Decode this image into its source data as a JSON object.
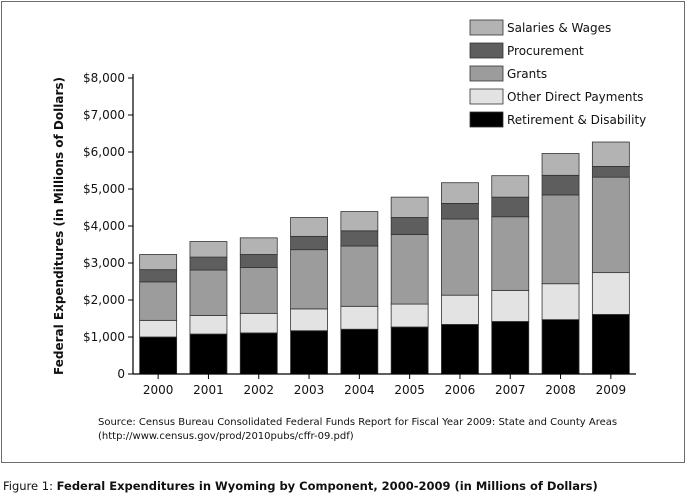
{
  "chart_data": {
    "type": "bar",
    "stacked": true,
    "categories": [
      "2000",
      "2001",
      "2002",
      "2003",
      "2004",
      "2005",
      "2006",
      "2007",
      "2008",
      "2009"
    ],
    "series": [
      {
        "name": "Retirement & Disability",
        "color": "#000000",
        "values": [
          1000,
          1080,
          1110,
          1170,
          1210,
          1270,
          1340,
          1420,
          1470,
          1610
        ]
      },
      {
        "name": "Other Direct Payments",
        "color": "#e3e3e3",
        "values": [
          450,
          500,
          530,
          590,
          620,
          620,
          790,
          840,
          970,
          1130
        ]
      },
      {
        "name": "Grants",
        "color": "#9c9c9c",
        "values": [
          1040,
          1230,
          1240,
          1600,
          1630,
          1880,
          2060,
          1990,
          2400,
          2580
        ]
      },
      {
        "name": "Procurement",
        "color": "#5e5e5e",
        "values": [
          330,
          350,
          350,
          360,
          410,
          460,
          420,
          530,
          530,
          290
        ]
      },
      {
        "name": "Salaries & Wages",
        "color": "#b3b3b3",
        "values": [
          410,
          420,
          450,
          510,
          520,
          550,
          560,
          580,
          590,
          660
        ]
      }
    ],
    "ylabel": "Federal Expenditures (in Millions of Dollars)",
    "ylim": [
      0,
      8000
    ],
    "yticks": [
      0,
      1000,
      2000,
      3000,
      4000,
      5000,
      6000,
      7000,
      8000
    ],
    "ytick_labels": [
      "0",
      "$1,000",
      "$2,000",
      "$3,000",
      "$4,000",
      "$5,000",
      "$6,000",
      "$7,000",
      "$8,000"
    ],
    "grid": false,
    "legend_position": "top-right",
    "legend_order": [
      "Salaries & Wages",
      "Procurement",
      "Grants",
      "Other Direct Payments",
      "Retirement & Disability"
    ]
  },
  "source": {
    "line1": "Source: Census Bureau Consolidated Federal Funds Report for Fiscal Year 2009: State and County Areas",
    "line2": "(http://www.census.gov/prod/2010pubs/cffr-09.pdf)"
  },
  "caption": {
    "prefix": "Figure 1: ",
    "title": "Federal Expenditures in Wyoming by Component, 2000-2009 (in Millions of Dollars)"
  }
}
